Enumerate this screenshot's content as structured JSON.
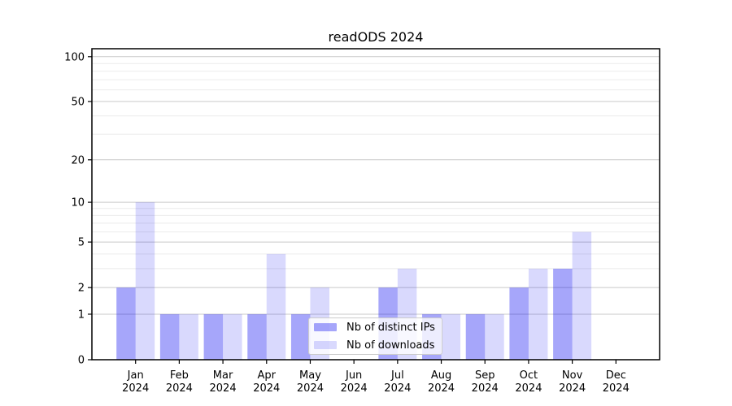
{
  "chart_data": {
    "type": "bar",
    "title": "readODS 2024",
    "x_categories": [
      "Jan",
      "Feb",
      "Mar",
      "Apr",
      "May",
      "Jun",
      "Jul",
      "Aug",
      "Sep",
      "Oct",
      "Nov",
      "Dec"
    ],
    "x_year_label": "2024",
    "series": [
      {
        "name": "Nb of distinct IPs",
        "color": "rgba(0,0,240,0.35)",
        "values": [
          2,
          1,
          1,
          1,
          1,
          0,
          2,
          1,
          1,
          2,
          3,
          0
        ]
      },
      {
        "name": "Nb of downloads",
        "color": "rgba(0,0,240,0.15)",
        "values": [
          10,
          1,
          1,
          4,
          2,
          0,
          3,
          1,
          1,
          3,
          6,
          0
        ]
      }
    ],
    "y_scale": "log1p",
    "y_ticks_major": [
      0,
      1,
      2,
      5,
      10,
      20,
      50,
      100
    ],
    "y_ticks_minor": [
      3,
      4,
      6,
      7,
      8,
      9,
      30,
      40,
      60,
      70,
      80,
      90
    ],
    "ylim": [
      0,
      113
    ],
    "grid": true,
    "legend_position": "bottom-center",
    "colors": {
      "grid_major": "#c9c9c9",
      "grid_minor": "#ebebeb",
      "spine": "#000000",
      "tick_text": "#000000",
      "background": "#ffffff"
    }
  }
}
